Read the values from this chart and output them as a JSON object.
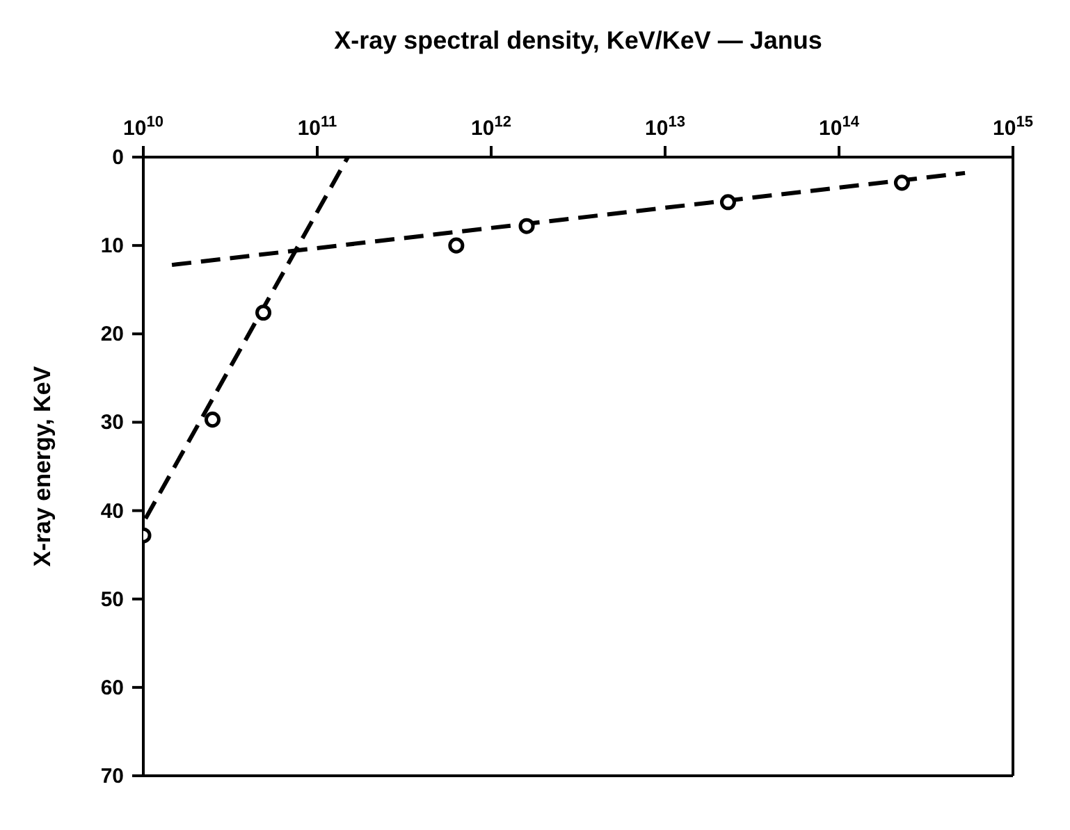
{
  "chart_data": {
    "type": "scatter",
    "xlabel": "X-ray spectral density, KeV/KeV — Janus",
    "ylabel": "X-ray energy, KeV",
    "log": "x",
    "xlim": [
      10000000000,
      1000000000000000
    ],
    "xticks": [
      {
        "value": 10000000000,
        "label": "10$^{10}$"
      },
      {
        "value": 100000000000,
        "label": "10$^{11}$"
      },
      {
        "value": 1000000000000,
        "label": "10$^{12}$"
      },
      {
        "value": 10000000000000,
        "label": "10$^{13}$"
      },
      {
        "value": 100000000000000,
        "label": "10$^{14}$"
      },
      {
        "value": 1000000000000000,
        "label": "10$^{15}$"
      }
    ],
    "ylim": [
      70,
      0
    ],
    "yticks": [
      0,
      10,
      20,
      30,
      40,
      50,
      60,
      70
    ],
    "grid": false,
    "series": [
      {
        "color": "#000000",
        "marker": "circle",
        "x": [
          10000000000,
          25000000000,
          49000000000,
          630000000000,
          1600000000000,
          23000000000000,
          230000000000000
        ],
        "values": [
          42.8,
          29.7,
          17.6,
          10.0,
          7.8,
          5.1,
          2.9
        ]
      },
      {
        "type": "line",
        "color": "#000000",
        "marker": "none",
        "line_style": "dashed",
        "x": [
          10300000000,
          150000000000
        ],
        "values": [
          40.9,
          0
        ]
      },
      {
        "type": "line",
        "color": "#000000",
        "marker": "none",
        "line_style": "dashed",
        "x": [
          14600000000,
          530000000000000
        ],
        "values": [
          12.2,
          1.8
        ]
      }
    ]
  }
}
